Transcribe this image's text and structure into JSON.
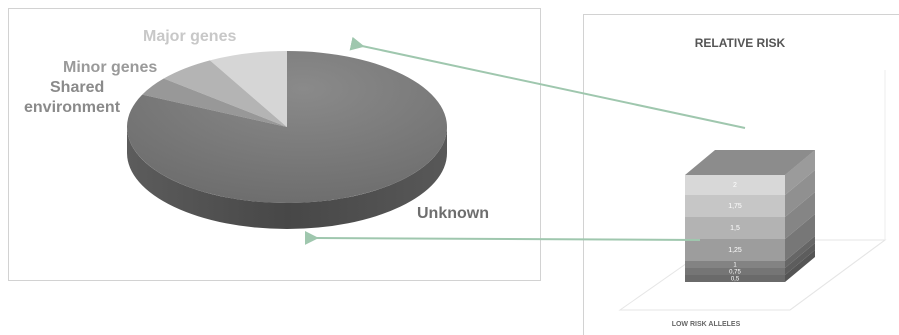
{
  "chart_data": [
    {
      "type": "pie",
      "title": "",
      "slices": [
        {
          "label": "Major genes",
          "value": 8,
          "color": "#d6d6d6"
        },
        {
          "label": "Minor genes",
          "value": 6,
          "color": "#b4b4b4"
        },
        {
          "label": "Shared environment",
          "value": 4,
          "color": "#989898"
        },
        {
          "label": "Unknown",
          "value": 82,
          "color": "#7b7b7b"
        }
      ],
      "labels_color": {
        "Major genes": "#c8c8c8",
        "Minor genes": "#9a9a9a",
        "Shared environment": "#8a8a8a",
        "Unknown": "#6e6e6e"
      }
    },
    {
      "type": "bar",
      "title": "RELATIVE RISK",
      "xlabel": "LOW RISK ALLELES",
      "stack_levels": [
        "0,5",
        "0,75",
        "1",
        "1,25",
        "1,5",
        "1,75",
        "2"
      ]
    }
  ],
  "colors": {
    "arrow": "#9fc7ae",
    "frame": "#d2d2d2",
    "pie_top": "#7b7b7b",
    "pie_side": "#4f4f4f"
  }
}
